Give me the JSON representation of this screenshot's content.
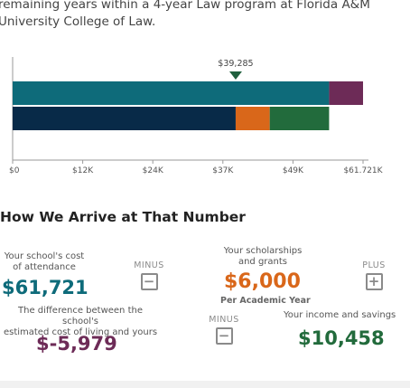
{
  "intro": {
    "line1": "remaining years within a 4-year Law program at Florida A&M",
    "line2": "University College of Law."
  },
  "chart_data": {
    "type": "bar",
    "orientation": "horizontal",
    "marker": {
      "label": "$39,285",
      "value": 39285,
      "color": "#1f5f3d"
    },
    "bars": [
      {
        "segments": [
          {
            "value": 55742,
            "color": "#0e6b7a"
          },
          {
            "value": 5979,
            "color": "#6d2b57"
          }
        ]
      },
      {
        "segments": [
          {
            "value": 39285,
            "color": "#082a48"
          },
          {
            "value": 6000,
            "color": "#d9671a"
          },
          {
            "value": 10458,
            "color": "#226b3c"
          }
        ]
      }
    ],
    "xlim": [
      0,
      61721
    ],
    "xticks": [
      {
        "value": 0,
        "label": "$0"
      },
      {
        "value": 12344,
        "label": "$12K"
      },
      {
        "value": 24688,
        "label": "$24K"
      },
      {
        "value": 37032,
        "label": "$37K"
      },
      {
        "value": 49376,
        "label": "$49K"
      },
      {
        "value": 61721,
        "label": "$61.721K"
      }
    ]
  },
  "section": {
    "title": "How We Arrive at That Number"
  },
  "cost": {
    "label_line1": "Your school's cost",
    "label_line2": "of attendance",
    "amount": "$61,721",
    "color": "#0e6b7a"
  },
  "minus_op": {
    "label": "MINUS",
    "symbol": "−"
  },
  "scholarships": {
    "label_line1": "Your scholarships",
    "label_line2": "and grants",
    "amount": "$6,000",
    "sub": "Per Academic Year",
    "color": "#d9671a"
  },
  "plus_op": {
    "label": "PLUS",
    "symbol": "+"
  },
  "difference": {
    "label_line1": "The difference between the school's",
    "label_line2": "estimated cost of living and yours",
    "amount": "$-5,979",
    "color": "#6d2b57"
  },
  "minus_op2": {
    "label": "MINUS",
    "symbol": "−"
  },
  "income": {
    "label": "Your income and savings",
    "amount": "$10,458",
    "color": "#226b3c"
  }
}
